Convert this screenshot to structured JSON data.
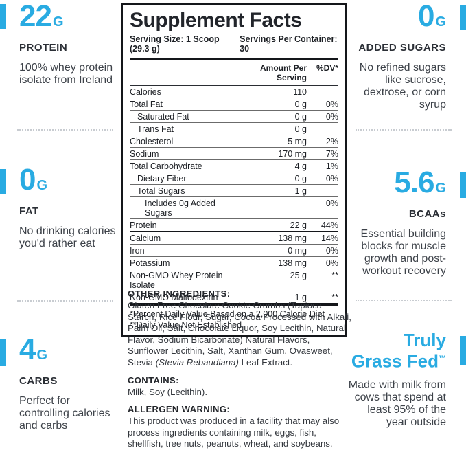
{
  "colors": {
    "accent_blue": "#29ABE2",
    "panel_black": "#14161a",
    "text_dark": "#3d4249"
  },
  "left_column": {
    "callouts": [
      {
        "value": "22",
        "unit": "G",
        "label": "PROTEIN",
        "description": "100% whey protein isolate from Ireland"
      },
      {
        "value": "0",
        "unit": "G",
        "label": "FAT",
        "description": "No drinking calories you'd rather eat"
      },
      {
        "value": "4",
        "unit": "G",
        "label": "CARBS",
        "description": "Perfect for controlling calories and carbs"
      }
    ]
  },
  "right_column": {
    "callouts": [
      {
        "value": "0",
        "unit": "G",
        "label": "ADDED SUGARS",
        "description": "No refined sugars like sucrose, dextrose, or corn syrup"
      },
      {
        "value": "5.6",
        "unit": "G",
        "label": "BCAAs",
        "description": "Essential building blocks for muscle growth and post-workout recovery"
      },
      {
        "title_line1": "Truly",
        "title_line2": "Grass Fed",
        "trademark": "™",
        "description": "Made with milk from cows that spend at least 95% of the year outside"
      }
    ]
  },
  "panel": {
    "title": "Supplement Facts",
    "serving_size": "Serving Size: 1 Scoop (29.3 g)",
    "servings_per_container": "Servings Per Container: 30",
    "col_amount": "Amount Per Serving",
    "col_dv": "%DV*",
    "rows": [
      {
        "name": "Calories",
        "amount": "110",
        "dv": "",
        "indent": 0
      },
      {
        "name": "Total Fat",
        "amount": "0 g",
        "dv": "0%",
        "indent": 0
      },
      {
        "name": "Saturated Fat",
        "amount": "0 g",
        "dv": "0%",
        "indent": 1
      },
      {
        "name": "Trans Fat",
        "amount": "0 g",
        "dv": "",
        "indent": 1
      },
      {
        "name": "Cholesterol",
        "amount": "5 mg",
        "dv": "2%",
        "indent": 0
      },
      {
        "name": "Sodium",
        "amount": "170 mg",
        "dv": "7%",
        "indent": 0
      },
      {
        "name": "Total Carbohydrate",
        "amount": "4 g",
        "dv": "1%",
        "indent": 0
      },
      {
        "name": "Dietary Fiber",
        "amount": "0 g",
        "dv": "0%",
        "indent": 1
      },
      {
        "name": "Total Sugars",
        "amount": "1 g",
        "dv": "",
        "indent": 1
      },
      {
        "name": "Includes 0g Added Sugars",
        "amount": "",
        "dv": "0%",
        "indent": 2
      },
      {
        "name": "Protein",
        "amount": "22 g",
        "dv": "44%",
        "indent": 0,
        "thick_below": true
      },
      {
        "name": "Calcium",
        "amount": "138 mg",
        "dv": "14%",
        "indent": 0
      },
      {
        "name": "Iron",
        "amount": "0 mg",
        "dv": "0%",
        "indent": 0
      },
      {
        "name": "Potassium",
        "amount": "138 mg",
        "dv": "0%",
        "indent": 0
      },
      {
        "name": "Non-GMO Whey Protein Isolate",
        "amount": "25 g",
        "dv": "**",
        "indent": 0
      },
      {
        "name": "Non-GMO Maltodextrin",
        "amount": "1 g",
        "dv": "**",
        "indent": 0,
        "last": true
      }
    ],
    "footnotes": [
      "*Percent Daily Value Based on a 2,000 Calorie Diet",
      "**Daily Value Not Established"
    ]
  },
  "details": {
    "other_ingredients_heading": "OTHER INGREDIENTS:",
    "other_ingredients_text_1": "Gluten Free Chocolate Cookie Crumbs (Tapioca Starch, Rice Flour, Sugar, Cocoa Processed with Alkali, Palm Oil, Salt, Chocolate Liquor, Soy Lecithin, Natural Flavor, Sodium Bicarbonate) Natural Flavors, Sunflower Lecithin, Salt, Xanthan Gum, Ovasweet, Stevia ",
    "other_ingredients_italic": "(Stevia Rebaudiana)",
    "other_ingredients_text_2": " Leaf Extract.",
    "contains_heading": "CONTAINS:",
    "contains_text": "Milk, Soy (Lecithin).",
    "allergen_heading": "ALLERGEN WARNING:",
    "allergen_text": "This product was produced in a facility that may also process ingredients containing milk, eggs, fish, shellfish, tree nuts, peanuts, wheat, and soybeans."
  }
}
